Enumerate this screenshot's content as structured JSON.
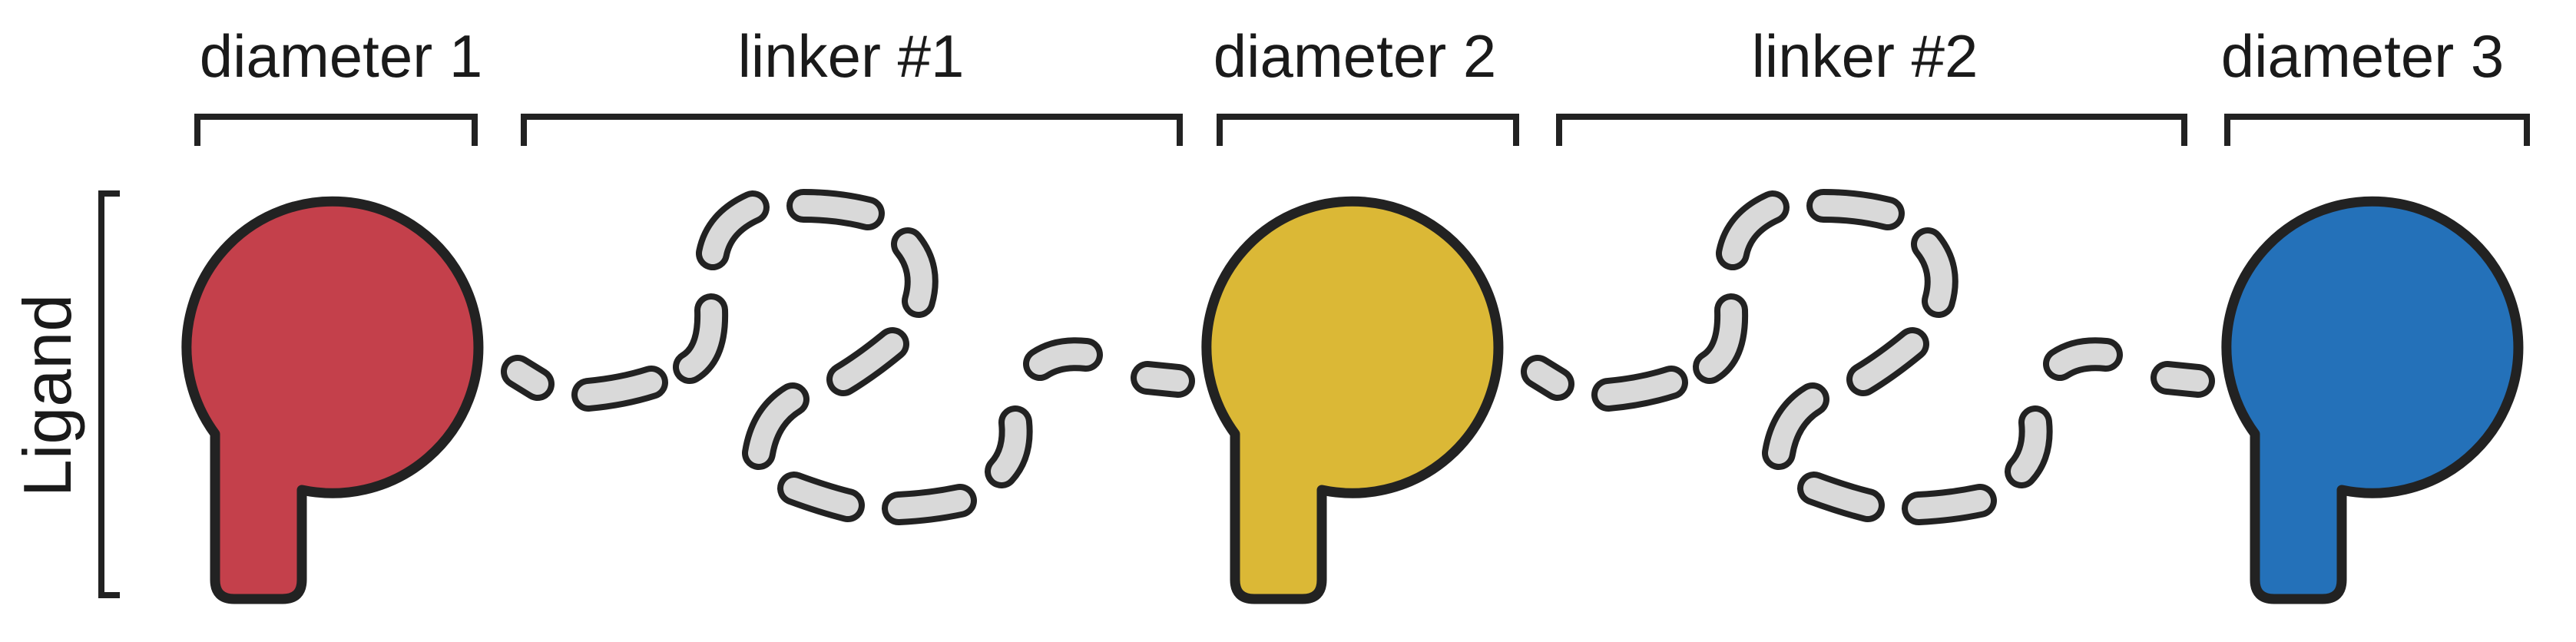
{
  "labels": {
    "diameter_1": "diameter 1",
    "linker_1": "linker #1",
    "diameter_2": "diameter 2",
    "linker_2": "linker #2",
    "diameter_3": "diameter 3",
    "side_label": "Ligand"
  },
  "colors": {
    "diameter_1": "#c4404b",
    "diameter_2": "#dbb836",
    "diameter_3": "#2471b9",
    "linker_fill": "#d9d9d9",
    "outline": "#222222"
  }
}
